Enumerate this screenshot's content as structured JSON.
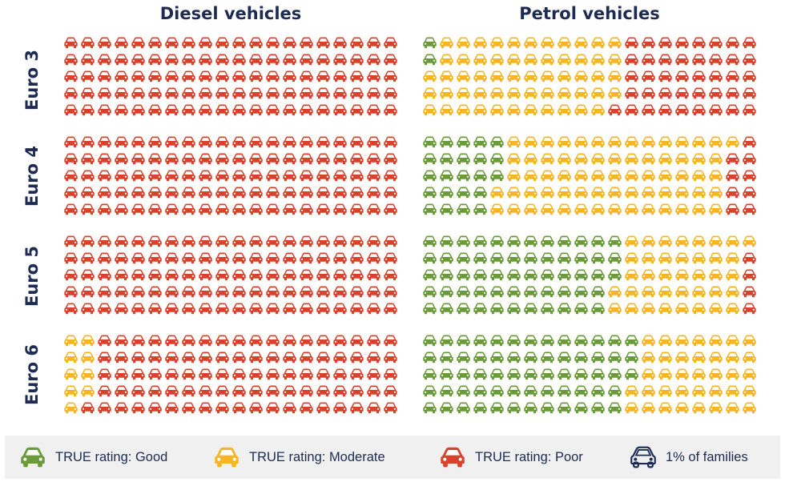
{
  "chart_data": {
    "type": "waffle",
    "unit": "1% of families",
    "columns": [
      "Diesel vehicles",
      "Petrol vehicles"
    ],
    "rows": [
      "Euro 3",
      "Euro 4",
      "Euro 5",
      "Euro 6"
    ],
    "grid": {
      "rows": 5,
      "cols": 20
    },
    "panels": [
      {
        "fuel": "Diesel vehicles",
        "standard": "Euro 3",
        "counts": [
          0,
          0,
          100
        ]
      },
      {
        "fuel": "Diesel vehicles",
        "standard": "Euro 4",
        "counts": [
          0,
          0,
          100
        ]
      },
      {
        "fuel": "Diesel vehicles",
        "standard": "Euro 5",
        "counts": [
          0,
          0,
          100
        ]
      },
      {
        "fuel": "Diesel vehicles",
        "standard": "Euro 6",
        "counts": [
          0,
          9,
          91
        ]
      },
      {
        "fuel": "Petrol vehicles",
        "standard": "Euro 3",
        "counts": [
          2,
          57,
          41
        ]
      },
      {
        "fuel": "Petrol vehicles",
        "standard": "Euro 4",
        "counts": [
          23,
          68,
          9
        ]
      },
      {
        "fuel": "Petrol vehicles",
        "standard": "Euro 5",
        "counts": [
          58,
          38,
          4
        ]
      },
      {
        "fuel": "Petrol vehicles",
        "standard": "Euro 6",
        "counts": [
          63,
          37,
          0
        ]
      }
    ]
  },
  "colors": {
    "good": "#6a9a3a",
    "moderate": "#f6b624",
    "poor": "#d9412c",
    "text": "#1d2b53",
    "legend_bg": "#f0f0f0"
  },
  "legend": [
    {
      "key": "good",
      "label": "TRUE rating: Good",
      "icon": "car-icon-good"
    },
    {
      "key": "moderate",
      "label": "TRUE rating: Moderate",
      "icon": "car-icon-moderate"
    },
    {
      "key": "poor",
      "label": "TRUE rating: Poor",
      "icon": "car-icon-poor"
    },
    {
      "key": "unit",
      "label": "1% of families",
      "icon": "car-outline-icon"
    }
  ]
}
